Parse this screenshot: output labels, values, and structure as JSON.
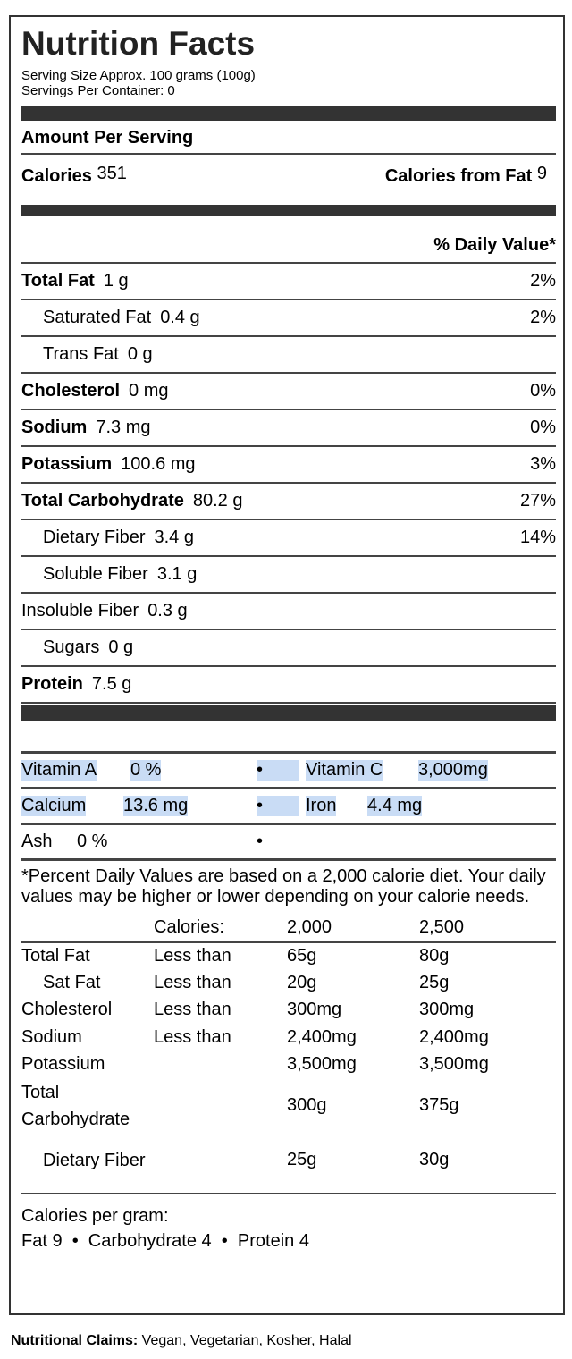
{
  "title": "Nutrition Facts",
  "serving_size": "Serving Size  Approx. 100 grams  (100g)",
  "servings_per_container": "Servings Per Container: 0",
  "amount_per_serving": "Amount Per Serving",
  "calories_label": "Calories",
  "calories_value": "351",
  "calories_fat_label": "Calories from Fat",
  "calories_fat_value": "9",
  "daily_value_header": "% Daily Value*",
  "nutrients": [
    {
      "label": "Total Fat",
      "value": "1 g",
      "dv": "2%",
      "bold": true,
      "indent": false
    },
    {
      "label": "Saturated Fat",
      "value": "0.4 g",
      "dv": "2%",
      "bold": false,
      "indent": true
    },
    {
      "label": "Trans Fat",
      "value": "0 g",
      "dv": "",
      "bold": false,
      "indent": true
    },
    {
      "label": "Cholesterol",
      "value": "0 mg",
      "dv": "0%",
      "bold": true,
      "indent": false
    },
    {
      "label": "Sodium",
      "value": "7.3 mg",
      "dv": "0%",
      "bold": true,
      "indent": false
    },
    {
      "label": "Potassium",
      "value": "100.6 mg",
      "dv": "3%",
      "bold": true,
      "indent": false
    },
    {
      "label": "Total Carbohydrate",
      "value": "80.2 g",
      "dv": "27%",
      "bold": true,
      "indent": false
    },
    {
      "label": "Dietary Fiber",
      "value": "3.4 g",
      "dv": "14%",
      "bold": false,
      "indent": true
    },
    {
      "label": "Soluble Fiber",
      "value": "3.1 g",
      "dv": "",
      "bold": false,
      "indent": true
    },
    {
      "label": "Insoluble Fiber",
      "value": "0.3 g",
      "dv": "",
      "bold": false,
      "indent": false
    },
    {
      "label": "Sugars",
      "value": "0 g",
      "dv": "",
      "bold": false,
      "indent": true
    },
    {
      "label": "Protein",
      "value": "7.5 g",
      "dv": "",
      "bold": true,
      "indent": false
    }
  ],
  "vitamins": [
    {
      "l1": "Vitamin A",
      "v1": "0 %",
      "bullet": "•",
      "l2": "Vitamin C",
      "v2": "3,000mg"
    },
    {
      "l1": "Calcium",
      "v1": "13.6 mg",
      "bullet": "•",
      "l2": "Iron",
      "v2": "4.4 mg"
    },
    {
      "l1": "Ash",
      "v1": "0 %",
      "bullet": "•",
      "l2": "",
      "v2": ""
    }
  ],
  "highlight_color": "#c9dcf5",
  "footnote": "*Percent Daily Values are based on a 2,000 calorie diet. Your daily values may be higher or lower depending on your calorie needs.",
  "dv_table": {
    "header": [
      "",
      "Calories:",
      "2,000",
      "2,500"
    ],
    "rows": [
      [
        "Total Fat",
        "Less than",
        "65g",
        "80g"
      ],
      [
        "Sat Fat",
        "Less than",
        "20g",
        "25g"
      ],
      [
        "Cholesterol",
        "Less than",
        "300mg",
        "300mg"
      ],
      [
        "Sodium",
        "Less than",
        "2,400mg",
        "2,400mg"
      ],
      [
        "Potassium",
        "",
        "3,500mg",
        "3,500mg"
      ],
      [
        "Total Carbohydrate",
        "",
        "300g",
        "375g"
      ],
      [
        "Dietary Fiber",
        "",
        "25g",
        "30g"
      ]
    ]
  },
  "calories_per_gram": "Calories per gram:",
  "calories_per_gram_values": "Fat 9  •  Carbohydrate 4  •  Protein 4",
  "claims_label": "Nutritional Claims:",
  "claims_value": " Vegan, Vegetarian, Kosher, Halal"
}
